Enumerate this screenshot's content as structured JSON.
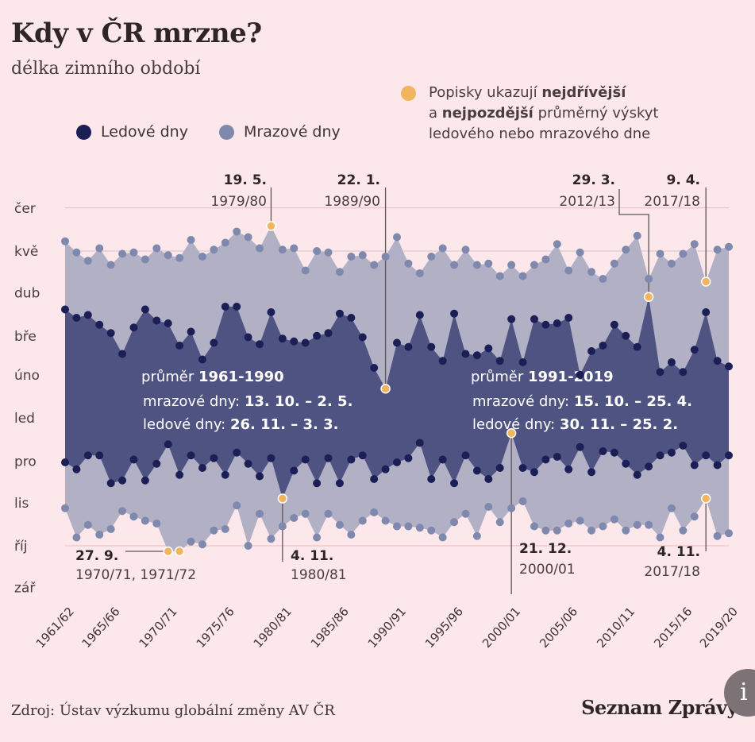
{
  "header": {
    "title": "Kdy v ČR mrzne?",
    "subtitle": "délka zimního období"
  },
  "legend": {
    "ice_label": "Ledové dny",
    "frost_label": "Mrazové dny"
  },
  "note": {
    "line1_pre": "Popisky ukazují ",
    "line1_bold": "nejdřívější",
    "line2_pre": "a ",
    "line2_bold": "nejpozdější",
    "line2_post": " průměrný výskyt",
    "line3": "ledového nebo mrazového dne"
  },
  "footer": {
    "source": "Zdroj: Ústav výzkumu globální změny AV ČR",
    "brand": "Seznam Zprávy",
    "info": "i"
  },
  "colors": {
    "background": "#fce8ea",
    "frost_area": "#b1b0c5",
    "frost_dot": "#7f88ad",
    "ice_area": "#4f5382",
    "ice_dot": "#1b1f56",
    "highlight": "#f2b55f"
  },
  "chart_data": {
    "type": "area",
    "title": "Kdy v ČR mrzne?",
    "value_unit": "days since 1 September",
    "y_ticks": [
      {
        "label": "zář",
        "value": 0
      },
      {
        "label": "říj",
        "value": 30
      },
      {
        "label": "lis",
        "value": 61
      },
      {
        "label": "pro",
        "value": 91
      },
      {
        "label": "led",
        "value": 122
      },
      {
        "label": "úno",
        "value": 153
      },
      {
        "label": "bře",
        "value": 181
      },
      {
        "label": "dub",
        "value": 212
      },
      {
        "label": "kvě",
        "value": 242
      },
      {
        "label": "čer",
        "value": 273
      }
    ],
    "x_tick_labels": [
      {
        "index": 0,
        "label": "1961/62"
      },
      {
        "index": 4,
        "label": "1965/66"
      },
      {
        "index": 9,
        "label": "1970/71"
      },
      {
        "index": 14,
        "label": "1975/76"
      },
      {
        "index": 19,
        "label": "1980/81"
      },
      {
        "index": 24,
        "label": "1985/86"
      },
      {
        "index": 29,
        "label": "1990/91"
      },
      {
        "index": 34,
        "label": "1995/96"
      },
      {
        "index": 39,
        "label": "2000/01"
      },
      {
        "index": 44,
        "label": "2005/06"
      },
      {
        "index": 49,
        "label": "2010/11"
      },
      {
        "index": 54,
        "label": "2015/16"
      },
      {
        "index": 58,
        "label": "2019/20"
      }
    ],
    "seasons_from": "1961/62",
    "seasons_to": "2019/20",
    "season_count": 59,
    "series": [
      {
        "name": "Mrazové dny – konec",
        "values": [
          249,
          241,
          235,
          244,
          232,
          240,
          241,
          236,
          244,
          239,
          237,
          250,
          238,
          243,
          248,
          256,
          252,
          244,
          260,
          243,
          244,
          228,
          242,
          241,
          227,
          238,
          239,
          232,
          238,
          252,
          233,
          226,
          238,
          244,
          232,
          243,
          232,
          233,
          224,
          232,
          224,
          232,
          236,
          247,
          228,
          241,
          227,
          222,
          233,
          243,
          253,
          222,
          240,
          233,
          240,
          247,
          220,
          243,
          245
        ]
      },
      {
        "name": "Mrazové dny – začátek",
        "values": [
          57,
          36,
          45,
          38,
          42,
          55,
          51,
          48,
          46,
          26,
          26,
          33,
          31,
          41,
          42,
          59,
          30,
          53,
          35,
          44,
          50,
          53,
          36,
          53,
          45,
          38,
          48,
          54,
          48,
          44,
          44,
          43,
          41,
          36,
          47,
          53,
          37,
          58,
          47,
          57,
          62,
          44,
          41,
          41,
          46,
          48,
          41,
          44,
          49,
          41,
          45,
          45,
          36,
          57,
          41,
          51,
          64,
          37,
          39
        ]
      },
      {
        "name": "Ledové dny – konec",
        "values": [
          200,
          194,
          196,
          189,
          183,
          168,
          187,
          200,
          192,
          190,
          174,
          184,
          164,
          176,
          202,
          202,
          180,
          175,
          198,
          179,
          177,
          176,
          181,
          183,
          197,
          194,
          180,
          158,
          143,
          176,
          173,
          196,
          173,
          163,
          197,
          168,
          167,
          172,
          163,
          193,
          162,
          193,
          189,
          190,
          194,
          153,
          170,
          174,
          189,
          181,
          173,
          209,
          155,
          162,
          155,
          171,
          198,
          163,
          159
        ]
      },
      {
        "name": "Ledové dny – začátek",
        "values": [
          90,
          85,
          95,
          95,
          75,
          77,
          92,
          77,
          89,
          103,
          81,
          95,
          86,
          93,
          81,
          97,
          89,
          80,
          93,
          64,
          84,
          92,
          75,
          93,
          75,
          92,
          95,
          78,
          85,
          90,
          93,
          104,
          78,
          92,
          75,
          95,
          84,
          78,
          86,
          111,
          86,
          83,
          92,
          94,
          85,
          101,
          83,
          98,
          97,
          89,
          81,
          87,
          95,
          97,
          102,
          88,
          95,
          88,
          95
        ]
      }
    ],
    "annotations": [
      {
        "id": "a1",
        "date": "19. 5.",
        "season": "1979/80",
        "series": 0,
        "index": 18
      },
      {
        "id": "a2",
        "date": "22. 1.",
        "season": "1989/90",
        "series": 2,
        "index": 28
      },
      {
        "id": "a3",
        "date": "29. 3.",
        "season": "2012/13",
        "series": 2,
        "index": 51
      },
      {
        "id": "a4",
        "date": "9. 4.",
        "season": "2017/18",
        "series": 0,
        "index": 56
      },
      {
        "id": "a5",
        "date": "27. 9.",
        "season": "1970/71, 1971/72",
        "series": 1,
        "index": 9,
        "index2": 10
      },
      {
        "id": "a6",
        "date": "4. 11.",
        "season": "1980/81",
        "series": 3,
        "index": 19
      },
      {
        "id": "a7",
        "date": "21. 12.",
        "season": "2000/01",
        "series": 3,
        "index": 39
      },
      {
        "id": "a8",
        "date": "4. 11.",
        "season": "2017/18",
        "series": 1,
        "index": 56
      }
    ],
    "averages": [
      {
        "heading_pre": "průměr ",
        "period": "1961-1990",
        "frost_label": "mrazové dny: ",
        "frost_range": "13. 10. – 2. 5.",
        "ice_label": "ledové dny: ",
        "ice_range": "26. 11. – 3. 3."
      },
      {
        "heading_pre": "průměr ",
        "period": "1991-2019",
        "frost_label": "mrazové dny: ",
        "frost_range": "15. 10. – 25. 4.",
        "ice_label": "ledové dny: ",
        "ice_range": "30. 11. – 25. 2."
      }
    ]
  }
}
